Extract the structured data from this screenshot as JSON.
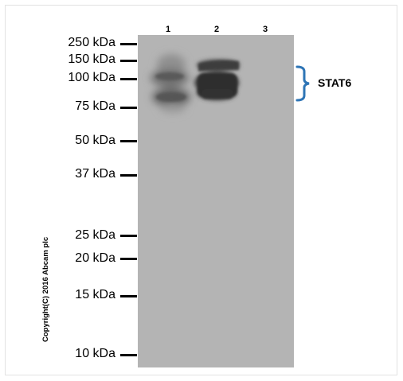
{
  "lanes": [
    "1",
    "2",
    "3"
  ],
  "markers": [
    "250 kDa",
    "150 kDa",
    "100 kDa",
    "75 kDa",
    "50 kDa",
    "37 kDa",
    "25 kDa",
    "20 kDa",
    "15 kDa",
    "10 kDa"
  ],
  "band_label": "STAT6",
  "copyright": "Copyright(C) 2016 Abcam plc",
  "colors": {
    "membrane": "#b2b2b2",
    "bracket": "#2e75b6",
    "band_dark": "#3a3a3a"
  }
}
